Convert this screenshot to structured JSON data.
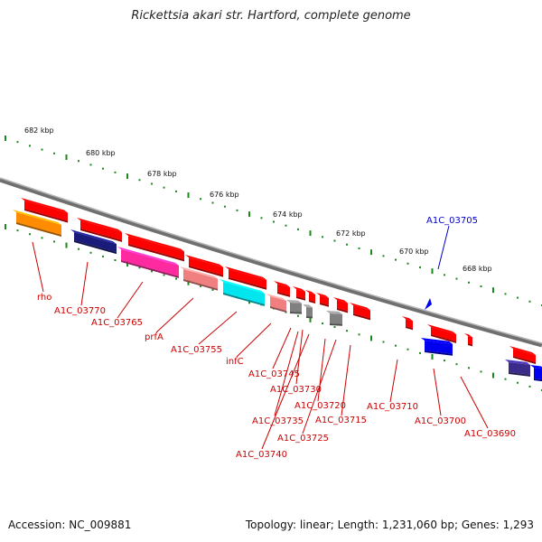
{
  "title": "Rickettsia akari str. Hartford, complete genome",
  "footer": {
    "accession": "Accession: NC_009881",
    "info": "Topology: linear; Length: 1,231,060 bp; Genes: 1,293"
  },
  "colors": {
    "backbone": "#8a8a8a",
    "tick": "#1a8a1a",
    "label_red": "#cc0000",
    "label_blue": "#0000cc"
  },
  "kbp_labels": [
    "682 kbp",
    "680 kbp",
    "678 kbp",
    "676 kbp",
    "674 kbp",
    "672 kbp",
    "670 kbp",
    "668 kbp"
  ],
  "genes": [
    {
      "label": "rho",
      "color": "#ff8c00"
    },
    {
      "label": "A1C_03770",
      "color": "#1a1a7a"
    },
    {
      "label": "A1C_03765",
      "color": "#ff2aa0"
    },
    {
      "label": "prfA",
      "color": "#f08080"
    },
    {
      "label": "A1C_03755",
      "color": "#00e5ee"
    },
    {
      "label": "infC",
      "color": "#f08080"
    },
    {
      "label": "A1C_03745",
      "color": "#808080"
    },
    {
      "label": "A1C_03730",
      "color": "#808080"
    },
    {
      "label": "A1C_03735",
      "color": "#ff0000"
    },
    {
      "label": "A1C_03740",
      "color": "#ff0000"
    },
    {
      "label": "A1C_03720",
      "color": "#808080"
    },
    {
      "label": "A1C_03725",
      "color": "#ff0000"
    },
    {
      "label": "A1C_03715",
      "color": "#ff0000"
    },
    {
      "label": "A1C_03710",
      "color": "#ff0000"
    },
    {
      "label": "A1C_03705",
      "color": "#0000ee"
    },
    {
      "label": "A1C_03700",
      "color": "#0000ee"
    },
    {
      "label": "A1C_03690",
      "color": "#ff0000"
    }
  ]
}
